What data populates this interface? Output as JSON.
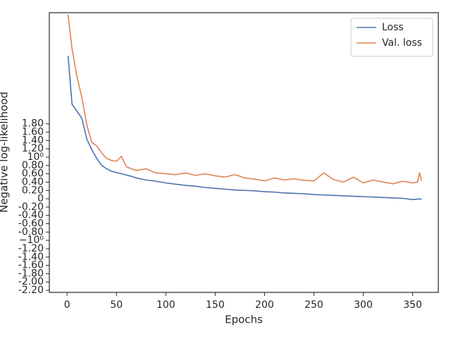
{
  "chart_data": {
    "type": "line",
    "xlabel": "Epochs",
    "ylabel": "Negative log-likelihood",
    "x": [
      1,
      5,
      10,
      15,
      20,
      25,
      30,
      35,
      40,
      45,
      50,
      55,
      60,
      65,
      70,
      80,
      90,
      100,
      110,
      120,
      130,
      140,
      150,
      160,
      170,
      180,
      190,
      200,
      210,
      220,
      230,
      240,
      250,
      260,
      270,
      280,
      290,
      300,
      310,
      320,
      330,
      340,
      350,
      355,
      357,
      359
    ],
    "series": [
      {
        "name": "Loss",
        "color": "#4c72b0",
        "values": [
          3.43,
          2.27,
          2.1,
          1.93,
          1.43,
          1.18,
          0.97,
          0.8,
          0.72,
          0.66,
          0.63,
          0.6,
          0.57,
          0.54,
          0.5,
          0.45,
          0.42,
          0.38,
          0.35,
          0.32,
          0.3,
          0.27,
          0.25,
          0.23,
          0.21,
          0.2,
          0.19,
          0.17,
          0.16,
          0.14,
          0.13,
          0.12,
          0.1,
          0.09,
          0.08,
          0.07,
          0.06,
          0.05,
          0.04,
          0.03,
          0.02,
          0.01,
          -0.02,
          -0.01,
          0,
          -0.02
        ]
      },
      {
        "name": "Val. loss",
        "color": "#dd8452",
        "values": [
          4.43,
          3.6,
          2.93,
          2.43,
          1.77,
          1.35,
          1.27,
          1.1,
          0.97,
          0.92,
          0.9,
          1.02,
          0.77,
          0.72,
          0.68,
          0.72,
          0.62,
          0.6,
          0.58,
          0.62,
          0.56,
          0.6,
          0.55,
          0.52,
          0.58,
          0.5,
          0.47,
          0.43,
          0.5,
          0.45,
          0.48,
          0.44,
          0.43,
          0.62,
          0.46,
          0.4,
          0.52,
          0.38,
          0.45,
          0.4,
          0.36,
          0.42,
          0.38,
          0.4,
          0.63,
          0.43
        ]
      }
    ],
    "xlim": [
      -18,
      376
    ],
    "xticks": [
      0,
      50,
      100,
      150,
      200,
      250,
      300,
      350
    ],
    "ylim": [
      -2.25,
      4.47
    ],
    "yticks": [
      {
        "value": -2.2,
        "label": "-2.20"
      },
      {
        "value": -2.0,
        "label": "-2.00"
      },
      {
        "value": -1.8,
        "label": "-1.80"
      },
      {
        "value": -1.6,
        "label": "-1.60"
      },
      {
        "value": -1.4,
        "label": "-1.40"
      },
      {
        "value": -1.2,
        "label": "-1.20"
      },
      {
        "value": -1,
        "label": "−10⁰"
      },
      {
        "value": -0.8,
        "label": "-0.80"
      },
      {
        "value": -0.6,
        "label": "-0.60"
      },
      {
        "value": -0.4,
        "label": "-0.40"
      },
      {
        "value": -0.2,
        "label": "-0.20"
      },
      0,
      {
        "value": 0.2,
        "label": "0.20"
      },
      {
        "value": 0.4,
        "label": "0.40"
      },
      {
        "value": 0.6,
        "label": "0.60"
      },
      {
        "value": 0.8,
        "label": "0.80"
      },
      {
        "value": 1,
        "label": "10⁰"
      },
      {
        "value": 1.2,
        "label": "1.20"
      },
      {
        "value": 1.4,
        "label": "1.40"
      },
      {
        "value": 1.6,
        "label": "1.60"
      },
      {
        "value": 1.8,
        "label": "1.80"
      }
    ],
    "legend": "upper right"
  }
}
